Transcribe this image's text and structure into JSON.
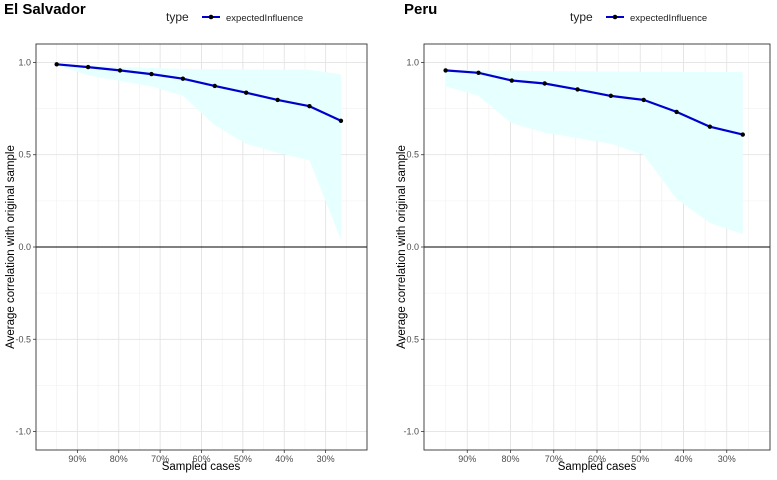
{
  "chart_data": [
    {
      "type": "line",
      "title": "El Salvador",
      "xlabel": "Sampled cases",
      "ylabel": "Average correlation with original sample",
      "legend_title": "type",
      "legend_position": "top",
      "xlim": [
        1.0,
        0.2
      ],
      "ylim": [
        -1.1,
        1.1
      ],
      "x_ticks": [
        0.9,
        0.8,
        0.7,
        0.6,
        0.5,
        0.4,
        0.3
      ],
      "x_tick_labels": [
        "90%",
        "80%",
        "70%",
        "60%",
        "50%",
        "40%",
        "30%"
      ],
      "y_ticks": [
        -1.0,
        -0.5,
        0.0,
        0.5,
        1.0
      ],
      "y_tick_labels": [
        "-1.0",
        "-0.5",
        "0.0",
        "0.5",
        "1.0"
      ],
      "grid": true,
      "series": [
        {
          "name": "expectedInfluence",
          "color": "#0000cc",
          "x": [
            0.95,
            0.874,
            0.797,
            0.721,
            0.645,
            0.568,
            0.492,
            0.416,
            0.339,
            0.263
          ],
          "y": [
            0.99,
            0.975,
            0.957,
            0.937,
            0.912,
            0.873,
            0.836,
            0.797,
            0.763,
            0.684
          ],
          "band_upper": [
            0.99,
            0.985,
            0.975,
            0.97,
            0.965,
            0.963,
            0.962,
            0.96,
            0.96,
            0.935
          ],
          "band_lower": [
            0.985,
            0.93,
            0.9,
            0.87,
            0.82,
            0.66,
            0.56,
            0.51,
            0.47,
            0.04
          ],
          "band_color": "#e6ffff"
        }
      ]
    },
    {
      "type": "line",
      "title": "Peru",
      "xlabel": "Sampled cases",
      "ylabel": "Average correlation with original sample",
      "legend_title": "type",
      "legend_position": "top",
      "xlim": [
        1.0,
        0.2
      ],
      "ylim": [
        -1.1,
        1.1
      ],
      "x_ticks": [
        0.9,
        0.8,
        0.7,
        0.6,
        0.5,
        0.4,
        0.3
      ],
      "x_tick_labels": [
        "90%",
        "80%",
        "70%",
        "60%",
        "50%",
        "40%",
        "30%"
      ],
      "y_ticks": [
        -1.0,
        -0.5,
        0.0,
        0.5,
        1.0
      ],
      "y_tick_labels": [
        "-1.0",
        "-0.5",
        "0.0",
        "0.5",
        "1.0"
      ],
      "grid": true,
      "series": [
        {
          "name": "expectedInfluence",
          "color": "#0000cc",
          "x": [
            0.95,
            0.874,
            0.797,
            0.721,
            0.645,
            0.568,
            0.492,
            0.416,
            0.339,
            0.263
          ],
          "y": [
            0.957,
            0.944,
            0.902,
            0.886,
            0.854,
            0.819,
            0.797,
            0.732,
            0.652,
            0.609
          ],
          "band_upper": [
            0.96,
            0.957,
            0.955,
            0.953,
            0.952,
            0.951,
            0.95,
            0.95,
            0.949,
            0.948
          ],
          "band_lower": [
            0.87,
            0.82,
            0.67,
            0.62,
            0.59,
            0.56,
            0.5,
            0.26,
            0.13,
            0.07
          ],
          "band_color": "#e6ffff"
        }
      ]
    }
  ]
}
